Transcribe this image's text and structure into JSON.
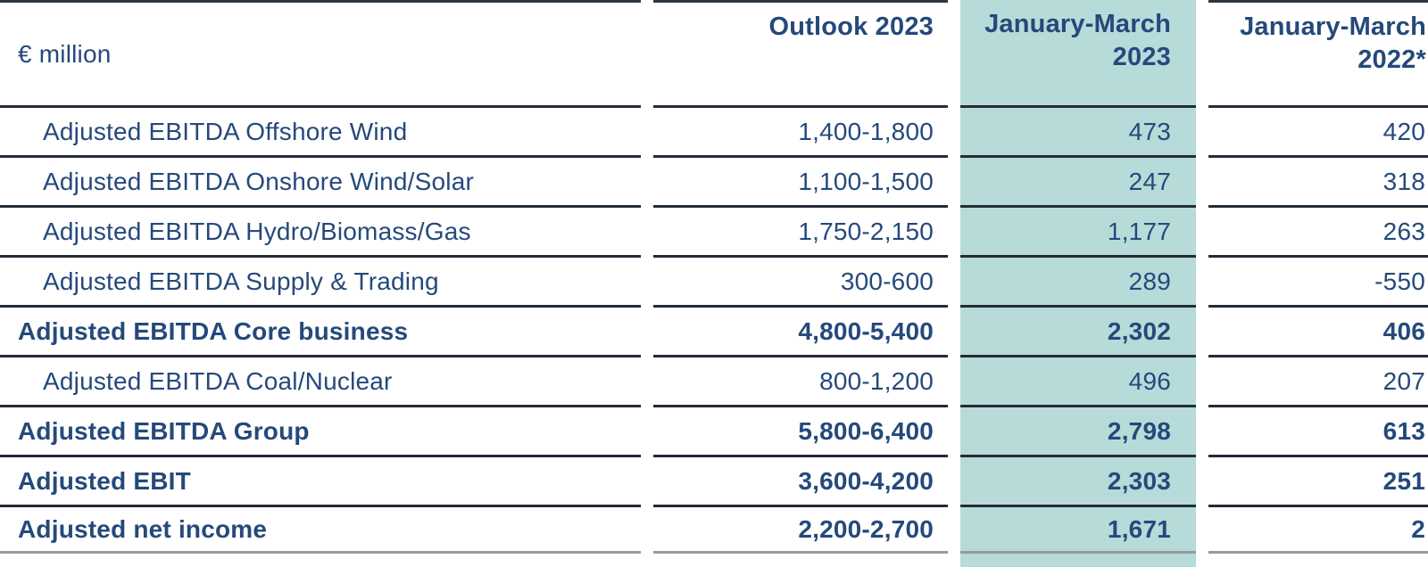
{
  "table": {
    "unit_label": "€ million",
    "columns": [
      {
        "label": "Outlook 2023",
        "highlighted": false
      },
      {
        "label": "January-March 2023",
        "highlighted": true
      },
      {
        "label": "January-March 2022*",
        "highlighted": false
      }
    ],
    "rows": [
      {
        "label": "Adjusted EBITDA Offshore Wind",
        "indent": true,
        "bold": false,
        "outlook_2023": "1,400-1,800",
        "jan_march_2023": "473",
        "jan_march_2022": "420"
      },
      {
        "label": "Adjusted EBITDA Onshore Wind/Solar",
        "indent": true,
        "bold": false,
        "outlook_2023": "1,100-1,500",
        "jan_march_2023": "247",
        "jan_march_2022": "318"
      },
      {
        "label": "Adjusted EBITDA Hydro/Biomass/Gas",
        "indent": true,
        "bold": false,
        "outlook_2023": "1,750-2,150",
        "jan_march_2023": "1,177",
        "jan_march_2022": "263"
      },
      {
        "label": "Adjusted EBITDA Supply & Trading",
        "indent": true,
        "bold": false,
        "outlook_2023": "300-600",
        "jan_march_2023": "289",
        "jan_march_2022": "-550"
      },
      {
        "label": "Adjusted EBITDA Core business",
        "indent": false,
        "bold": true,
        "outlook_2023": "4,800-5,400",
        "jan_march_2023": "2,302",
        "jan_march_2022": "406"
      },
      {
        "label": "Adjusted EBITDA Coal/Nuclear",
        "indent": true,
        "bold": false,
        "outlook_2023": "800-1,200",
        "jan_march_2023": "496",
        "jan_march_2022": "207"
      },
      {
        "label": "Adjusted EBITDA Group",
        "indent": false,
        "bold": true,
        "outlook_2023": "5,800-6,400",
        "jan_march_2023": "2,798",
        "jan_march_2022": "613"
      },
      {
        "label": "Adjusted EBIT",
        "indent": false,
        "bold": true,
        "outlook_2023": "3,600-4,200",
        "jan_march_2023": "2,303",
        "jan_march_2022": "251"
      },
      {
        "label": "Adjusted net income",
        "indent": false,
        "bold": true,
        "outlook_2023": "2,200-2,700",
        "jan_march_2023": "1,671",
        "jan_march_2022": "2"
      }
    ],
    "colors": {
      "text_navy": "#25497b",
      "highlight_teal": "#b7dbd8",
      "row_rule": "#232c38",
      "top_rule": "#2e3741",
      "bottom_rule": "#949ba3"
    }
  }
}
